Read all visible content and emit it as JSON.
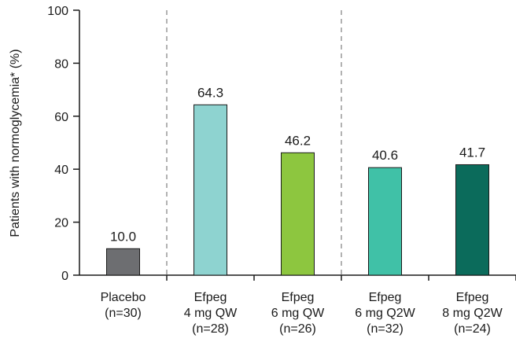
{
  "chart_data": {
    "type": "bar",
    "ylabel": "Patients with normoglycemia* (%)",
    "ylim": [
      0,
      100
    ],
    "yticks": [
      0,
      20,
      40,
      60,
      80,
      100
    ],
    "grid": false,
    "categories": [
      [
        "Placebo",
        "(n=30)"
      ],
      [
        "Efpeg",
        "4 mg QW",
        "(n=28)"
      ],
      [
        "Efpeg",
        "6 mg QW",
        "(n=26)"
      ],
      [
        "Efpeg",
        "6 mg Q2W",
        "(n=32)"
      ],
      [
        "Efpeg",
        "8 mg Q2W",
        "(n=24)"
      ]
    ],
    "values": [
      10.0,
      64.3,
      46.2,
      40.6,
      41.7
    ],
    "value_labels": [
      "10.0",
      "64.3",
      "46.2",
      "40.6",
      "41.7"
    ],
    "colors": [
      "#6d6e71",
      "#8ed3d0",
      "#8dc63f",
      "#40c1a7",
      "#0b6b5b"
    ],
    "group_separators_after": [
      1,
      3
    ]
  }
}
